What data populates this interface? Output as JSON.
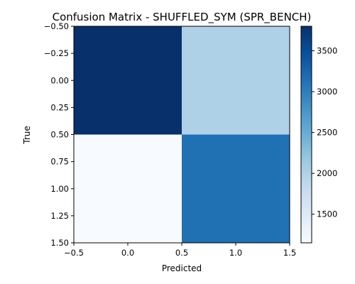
{
  "chart_data": {
    "type": "heatmap",
    "title": "Confusion Matrix - SHUFFLED_SYM (SPR_BENCH)",
    "xlabel": "Predicted",
    "ylabel": "True",
    "x_ticks": [
      "-0.5",
      "0.0",
      "0.5",
      "1.0",
      "1.5"
    ],
    "y_ticks": [
      "-0.50",
      "-0.25",
      "0.00",
      "0.25",
      "0.50",
      "0.75",
      "1.00",
      "1.25",
      "1.50"
    ],
    "colorbar_ticks": [
      "1500",
      "2000",
      "2500",
      "3000",
      "3500"
    ],
    "colormap": "Blues",
    "xlim": [
      -0.5,
      1.5
    ],
    "ylim": [
      1.5,
      -0.5
    ],
    "color_range": [
      1150,
      3800
    ],
    "matrix": [
      [
        3800,
        2000
      ],
      [
        1150,
        3150
      ]
    ]
  }
}
